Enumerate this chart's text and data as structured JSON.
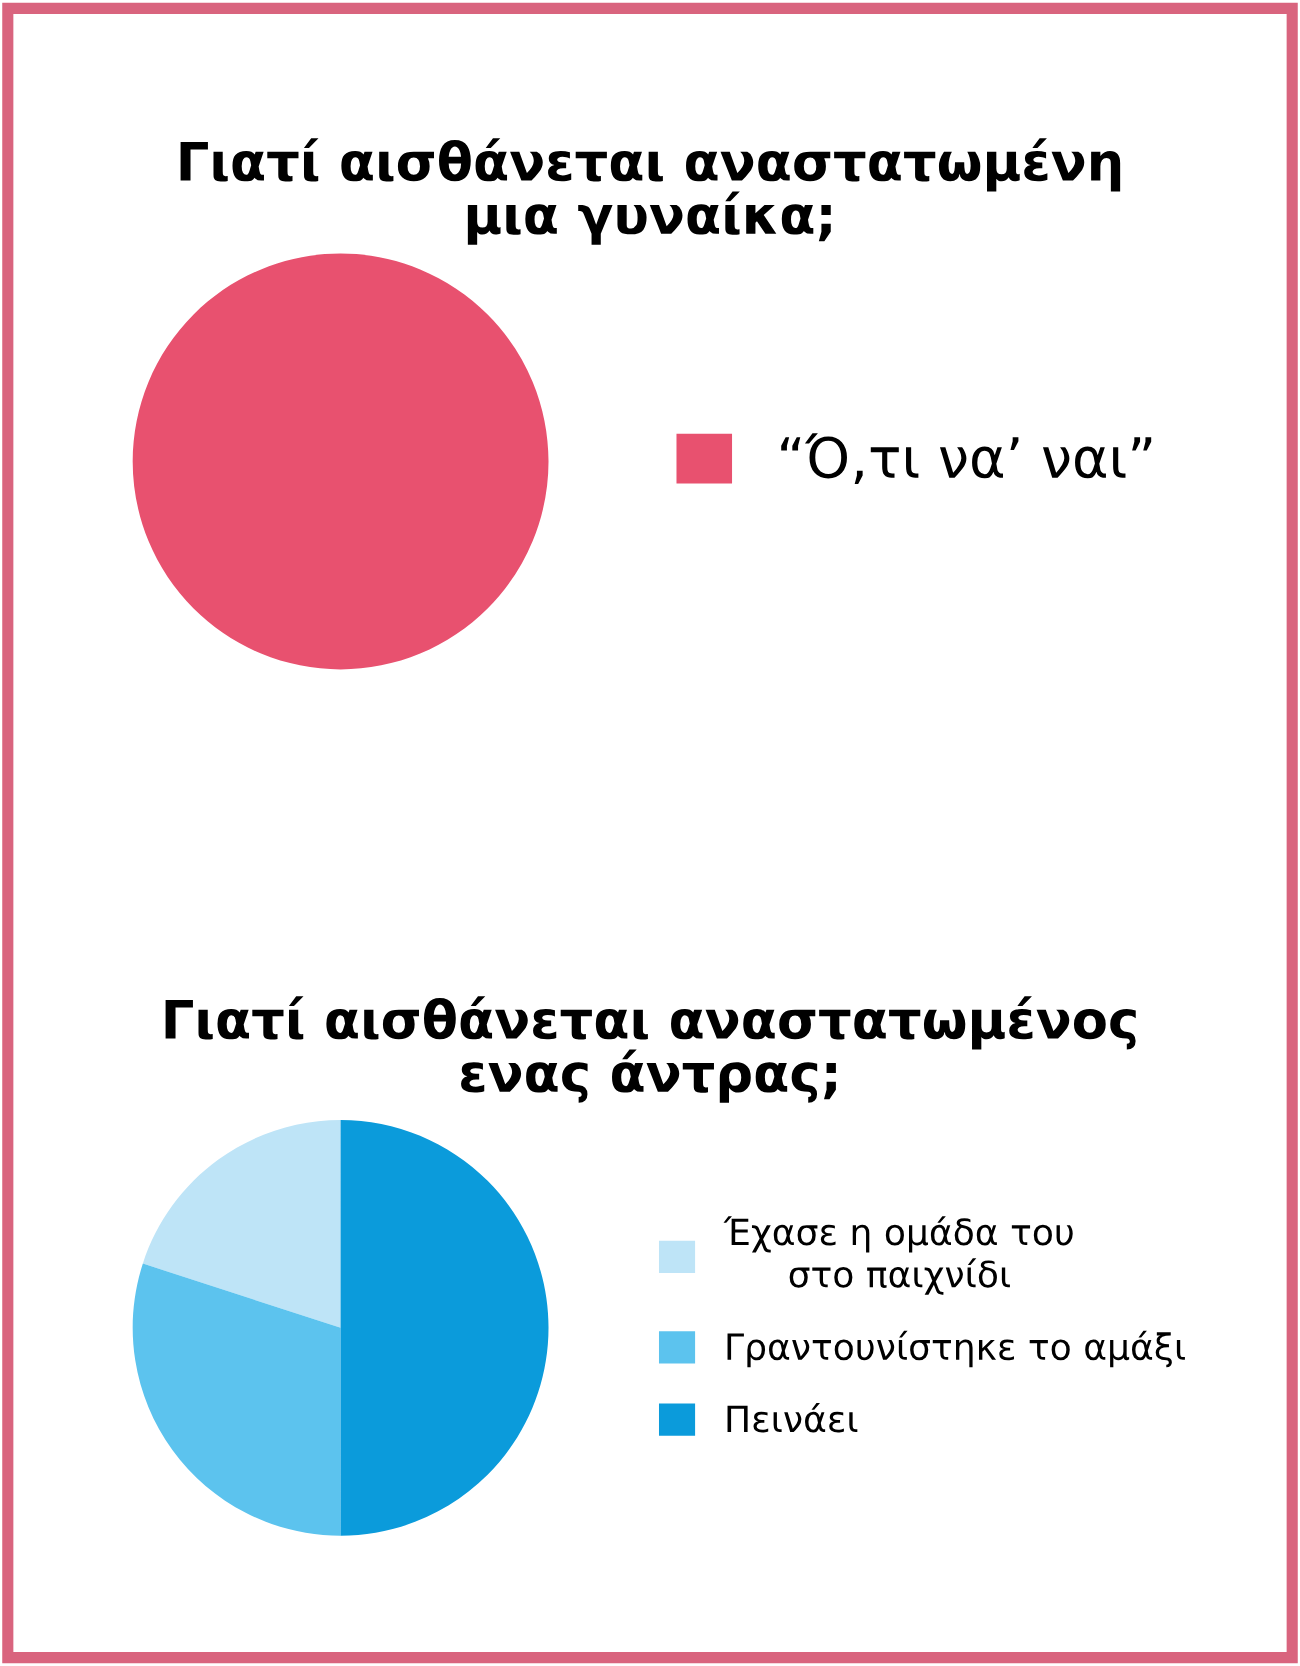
{
  "chart_data": [
    {
      "type": "pie",
      "title": "Γιατί αισθάνεται αναστατωμένη\nμια γυναίκα;",
      "categories": [
        "“Ό,τι να’ ναι”"
      ],
      "values": [
        100
      ],
      "colors": [
        "#e8516f"
      ],
      "legend": "right"
    },
    {
      "type": "pie",
      "title": "Γιατί αισθάνεται αναστατωμένος\nενας άντρας;",
      "categories": [
        "Έχασε η ομάδα του\nστο παιχνίδι",
        "Γραντουνίστηκε το αμάξι",
        "Πεινάει"
      ],
      "values": [
        20,
        30,
        50
      ],
      "colors": [
        "#bee4f7",
        "#5cc3ee",
        "#0b9bdb"
      ],
      "legend": "right"
    }
  ]
}
